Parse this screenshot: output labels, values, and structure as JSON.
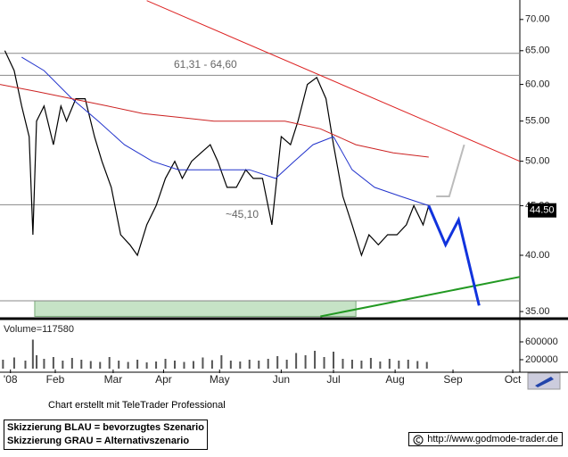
{
  "chart_data": {
    "type": "line",
    "ylog": true,
    "ylim": [
      34.56,
      73.0
    ],
    "yticks": [
      {
        "value": 35,
        "label": "35.00"
      },
      {
        "value": 40,
        "label": "40.00"
      },
      {
        "value": 45,
        "label": "45.00"
      },
      {
        "value": 50,
        "label": "50.00"
      },
      {
        "value": 55,
        "label": "55.00"
      },
      {
        "value": 60,
        "label": "60.00"
      },
      {
        "value": 65,
        "label": "65.00"
      },
      {
        "value": 70,
        "label": "70.00"
      }
    ],
    "xlim": [
      2.4,
      280.8
    ],
    "xticks": [
      {
        "value": 8,
        "label": "'08"
      },
      {
        "value": 32,
        "label": "Feb"
      },
      {
        "value": 63,
        "label": "Mar"
      },
      {
        "value": 90,
        "label": "Apr"
      },
      {
        "value": 120,
        "label": "May"
      },
      {
        "value": 153,
        "label": "Jun"
      },
      {
        "value": 181,
        "label": "Jul"
      },
      {
        "value": 214,
        "label": "Aug"
      },
      {
        "value": 245,
        "label": "Sep"
      },
      {
        "value": 277,
        "label": "Oct"
      }
    ],
    "hlines": {
      "color": "#888888",
      "values": [
        64.6,
        61.31,
        45.1,
        35.9
      ]
    },
    "zone": {
      "color": "#c6e3c6",
      "x": [
        21,
        193
      ],
      "y": [
        34.6,
        35.9
      ]
    },
    "annotations": [
      "61,31 - 64,60",
      "~45,10"
    ],
    "last_price": {
      "value": 44.5,
      "label": "44.50"
    },
    "series": [
      {
        "color": "#000000",
        "width": 1.2,
        "x": [
          5,
          10,
          14,
          18,
          20,
          22,
          26,
          31,
          35,
          38,
          43,
          48,
          53,
          57,
          62,
          67,
          72,
          76,
          81,
          86,
          91,
          96,
          100,
          105,
          110,
          115,
          119,
          124,
          129,
          134,
          138,
          143,
          148,
          153,
          158,
          162,
          167,
          172,
          177,
          181,
          186,
          191,
          196,
          200,
          205,
          210,
          215,
          220,
          224,
          229,
          232
        ],
        "values": [
          65,
          62,
          57,
          53,
          42,
          55,
          57,
          52,
          57,
          55,
          58,
          58,
          53,
          50,
          47,
          42,
          41,
          40,
          43,
          45,
          48,
          50,
          48,
          50,
          51,
          52,
          50,
          47,
          47,
          49,
          48,
          48,
          43,
          53,
          52,
          55,
          60,
          61,
          58,
          52,
          46,
          43,
          40,
          42,
          41,
          42,
          42,
          43,
          45,
          43,
          45
        ]
      },
      {
        "color": "#2233cc",
        "width": 1,
        "x": [
          14,
          26,
          41,
          55,
          69,
          84,
          98,
          117,
          136,
          150,
          160,
          170,
          181,
          191,
          203,
          217,
          232
        ],
        "values": [
          64,
          62,
          58,
          55,
          52,
          50,
          49,
          49,
          49,
          48,
          50,
          52,
          53,
          49,
          47,
          46,
          45
        ]
      },
      {
        "color": "#cc2222",
        "width": 1,
        "x": [
          2.4,
          22,
          41,
          60,
          79,
          98,
          117,
          136,
          155,
          174,
          193,
          213,
          232
        ],
        "values": [
          60,
          59,
          58,
          57,
          56,
          55.5,
          55,
          55,
          55,
          54,
          52,
          51,
          50.5
        ]
      },
      {
        "color": "#dd2222",
        "width": 1,
        "x": [
          81,
          280.8
        ],
        "values": [
          73.2,
          50
        ]
      },
      {
        "color": "#229922",
        "width": 2,
        "x": [
          174,
          280.8
        ],
        "values": [
          34.6,
          38
        ]
      },
      {
        "color": "#1133dd",
        "width": 3,
        "x": [
          232,
          241,
          248,
          259
        ],
        "values": [
          45,
          41,
          43.5,
          35.5
        ]
      },
      {
        "color": "#bbbbbb",
        "width": 2,
        "x": [
          236,
          243,
          251
        ],
        "values": [
          46,
          46,
          52
        ]
      }
    ],
    "volume": {
      "label": "Volume=117580",
      "color": "#555555",
      "ylim": [
        0,
        1000000
      ],
      "yticks": [
        200000,
        600000
      ],
      "x": [
        4,
        10,
        16,
        20,
        22,
        26,
        31,
        36,
        41,
        46,
        51,
        56,
        61,
        66,
        71,
        76,
        81,
        86,
        91,
        96,
        101,
        106,
        111,
        116,
        121,
        126,
        131,
        136,
        141,
        146,
        151,
        156,
        161,
        166,
        171,
        176,
        181,
        186,
        191,
        196,
        201,
        206,
        211,
        216,
        221,
        226,
        231
      ],
      "values": [
        200000,
        250000,
        180000,
        650000,
        300000,
        220000,
        260000,
        180000,
        240000,
        200000,
        170000,
        150000,
        260000,
        180000,
        150000,
        200000,
        140000,
        160000,
        220000,
        180000,
        150000,
        170000,
        250000,
        190000,
        300000,
        180000,
        160000,
        200000,
        180000,
        220000,
        280000,
        200000,
        350000,
        300000,
        400000,
        260000,
        380000,
        220000,
        200000,
        180000,
        240000,
        160000,
        220000,
        180000,
        200000,
        170000,
        150000
      ]
    }
  },
  "footer": {
    "credit": "Chart erstellt mit TeleTrader Professional",
    "legend": [
      "Skizzierung BLAU = bevorzugtes Szenario",
      "Skizzierung GRAU = Alternativszenario"
    ],
    "url": "http://www.godmode-trader.de"
  }
}
